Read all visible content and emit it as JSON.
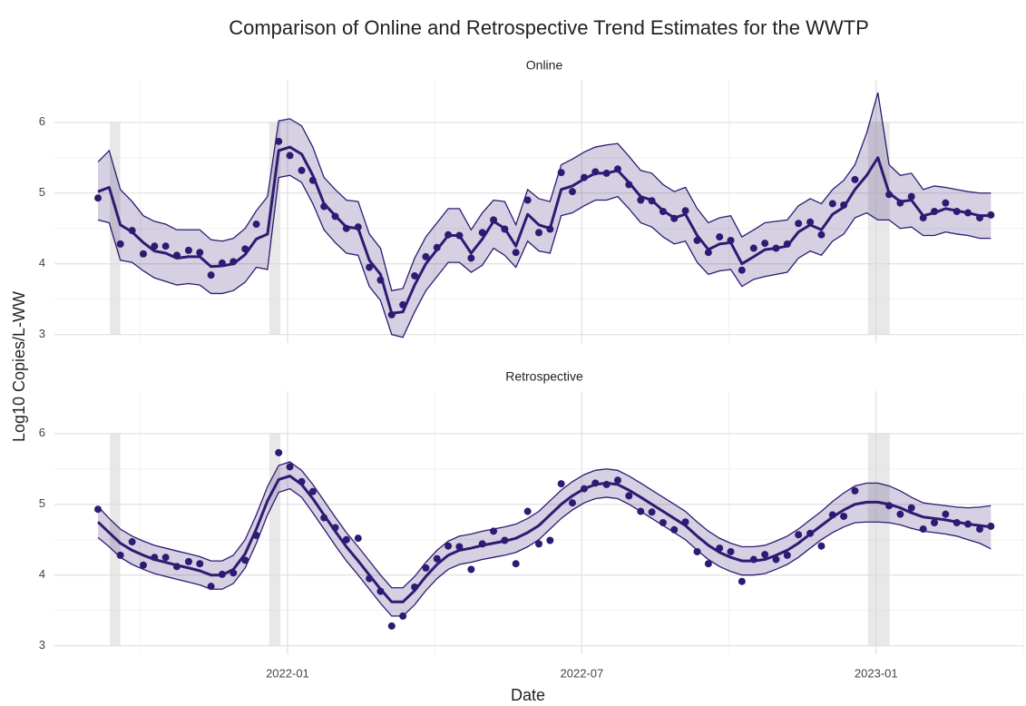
{
  "chart_data": {
    "type": "faceted-ribbon-line",
    "title": "Comparison of Online and Retrospective Trend Estimates for the WWTP",
    "xlabel": "Date",
    "ylabel": "Log10 Copies/L-WW",
    "color": "#2e1a72",
    "grid": true,
    "xlim": [
      2021.604,
      2023.25
    ],
    "xticks": [
      {
        "value": 2022.0,
        "label": "2022-01"
      },
      {
        "value": 2022.5,
        "label": "2022-07"
      },
      {
        "value": 2023.0,
        "label": "2023-01"
      }
    ],
    "xminor": [
      2021.75,
      2022.25,
      2022.75,
      2023.25
    ],
    "ylim": [
      2.88,
      6.6
    ],
    "yticks": [
      3,
      4,
      5,
      6
    ],
    "yminor": [
      3.5,
      4.5,
      5.5
    ],
    "shaded_spans": [
      [
        2021.698,
        2021.716
      ],
      [
        2021.969,
        2021.988
      ],
      [
        2022.986,
        2023.023
      ]
    ],
    "shaded_ylim": [
      3,
      6
    ],
    "x": [
      2021.678,
      2021.697,
      2021.716,
      2021.736,
      2021.755,
      2021.774,
      2021.793,
      2021.812,
      2021.832,
      2021.851,
      2021.87,
      2021.889,
      2021.908,
      2021.928,
      2021.947,
      2021.966,
      2021.985,
      2022.004,
      2022.024,
      2022.043,
      2022.062,
      2022.081,
      2022.1,
      2022.12,
      2022.139,
      2022.158,
      2022.177,
      2022.196,
      2022.216,
      2022.235,
      2022.254,
      2022.273,
      2022.292,
      2022.312,
      2022.331,
      2022.35,
      2022.369,
      2022.388,
      2022.408,
      2022.427,
      2022.446,
      2022.465,
      2022.484,
      2022.504,
      2022.523,
      2022.542,
      2022.561,
      2022.58,
      2022.6,
      2022.619,
      2022.638,
      2022.657,
      2022.676,
      2022.696,
      2022.715,
      2022.734,
      2022.753,
      2022.772,
      2022.792,
      2022.811,
      2022.83,
      2022.849,
      2022.868,
      2022.888,
      2022.907,
      2022.926,
      2022.945,
      2022.964,
      2022.984,
      2023.003,
      2023.022,
      2023.041,
      2023.06,
      2023.08,
      2023.099,
      2023.118,
      2023.137,
      2023.156,
      2023.176,
      2023.195
    ],
    "observed": [
      4.93,
      null,
      4.28,
      4.47,
      4.14,
      4.25,
      4.25,
      4.12,
      4.19,
      4.16,
      3.84,
      4.01,
      4.03,
      4.21,
      4.56,
      null,
      5.73,
      5.53,
      5.32,
      5.18,
      4.81,
      4.67,
      4.5,
      4.52,
      3.95,
      3.77,
      3.28,
      3.42,
      3.83,
      4.1,
      4.23,
      4.41,
      4.4,
      4.08,
      4.44,
      4.62,
      4.49,
      4.16,
      4.9,
      4.44,
      4.49,
      5.29,
      5.02,
      5.22,
      5.3,
      5.28,
      5.34,
      5.12,
      4.9,
      4.89,
      4.74,
      4.64,
      4.75,
      4.33,
      4.16,
      4.38,
      4.33,
      3.91,
      4.22,
      4.29,
      4.22,
      4.28,
      4.57,
      4.59,
      4.41,
      4.85,
      4.83,
      5.19,
      null,
      null,
      4.98,
      4.86,
      4.95,
      4.65,
      4.74,
      4.86,
      4.74,
      4.72,
      4.65,
      4.69
    ],
    "panels": [
      {
        "title": "Online",
        "trend": [
          5.02,
          5.08,
          4.55,
          4.45,
          4.3,
          4.18,
          4.15,
          4.08,
          4.1,
          4.1,
          3.96,
          3.97,
          4.0,
          4.13,
          4.35,
          4.42,
          5.6,
          5.65,
          5.55,
          5.25,
          4.85,
          4.68,
          4.52,
          4.5,
          4.05,
          3.85,
          3.3,
          3.32,
          3.7,
          4.0,
          4.2,
          4.4,
          4.4,
          4.15,
          4.35,
          4.6,
          4.5,
          4.25,
          4.7,
          4.55,
          4.5,
          5.05,
          5.1,
          5.2,
          5.28,
          5.28,
          5.32,
          5.15,
          4.95,
          4.9,
          4.75,
          4.65,
          4.7,
          4.4,
          4.2,
          4.28,
          4.3,
          4.0,
          4.1,
          4.2,
          4.22,
          4.25,
          4.45,
          4.55,
          4.48,
          4.7,
          4.8,
          5.05,
          5.25,
          5.5,
          5.0,
          4.88,
          4.9,
          4.68,
          4.72,
          4.78,
          4.75,
          4.72,
          4.68,
          4.68
        ],
        "lower": [
          4.62,
          4.58,
          4.05,
          4.02,
          3.9,
          3.8,
          3.75,
          3.7,
          3.72,
          3.7,
          3.58,
          3.58,
          3.62,
          3.74,
          3.95,
          3.92,
          5.22,
          5.25,
          5.15,
          4.85,
          4.48,
          4.3,
          4.15,
          4.12,
          3.68,
          3.48,
          3.0,
          2.96,
          3.32,
          3.62,
          3.82,
          4.02,
          4.02,
          3.88,
          3.98,
          4.22,
          4.12,
          3.95,
          4.32,
          4.18,
          4.15,
          4.68,
          4.72,
          4.82,
          4.9,
          4.9,
          4.95,
          4.78,
          4.58,
          4.52,
          4.38,
          4.28,
          4.32,
          4.02,
          3.85,
          3.9,
          3.92,
          3.68,
          3.78,
          3.82,
          3.85,
          3.88,
          4.08,
          4.18,
          4.12,
          4.32,
          4.42,
          4.65,
          4.72,
          4.62,
          4.62,
          4.5,
          4.52,
          4.4,
          4.4,
          4.45,
          4.42,
          4.4,
          4.36,
          4.36
        ],
        "upper": [
          5.44,
          5.6,
          5.05,
          4.88,
          4.68,
          4.6,
          4.56,
          4.48,
          4.48,
          4.48,
          4.34,
          4.32,
          4.36,
          4.5,
          4.75,
          4.95,
          6.02,
          6.05,
          5.95,
          5.65,
          5.22,
          5.05,
          4.9,
          4.88,
          4.42,
          4.22,
          3.62,
          3.65,
          4.08,
          4.38,
          4.58,
          4.78,
          4.78,
          4.48,
          4.72,
          4.9,
          4.88,
          4.55,
          5.05,
          4.92,
          4.88,
          5.4,
          5.48,
          5.58,
          5.65,
          5.68,
          5.7,
          5.52,
          5.32,
          5.28,
          5.12,
          5.02,
          5.08,
          4.78,
          4.58,
          4.65,
          4.68,
          4.38,
          4.48,
          4.58,
          4.6,
          4.62,
          4.82,
          4.92,
          4.85,
          5.05,
          5.18,
          5.4,
          5.85,
          6.42,
          5.4,
          5.25,
          5.28,
          5.05,
          5.1,
          5.08,
          5.05,
          5.02,
          5.0,
          5.0
        ]
      },
      {
        "title": "Retrospective",
        "trend": [
          4.75,
          4.6,
          4.45,
          4.35,
          4.28,
          4.22,
          4.18,
          4.14,
          4.1,
          4.06,
          4.0,
          4.0,
          4.08,
          4.3,
          4.65,
          5.05,
          5.35,
          5.4,
          5.28,
          5.08,
          4.85,
          4.62,
          4.4,
          4.2,
          4.0,
          3.8,
          3.62,
          3.62,
          3.78,
          3.98,
          4.15,
          4.28,
          4.35,
          4.38,
          4.42,
          4.45,
          4.48,
          4.52,
          4.6,
          4.7,
          4.85,
          5.0,
          5.12,
          5.22,
          5.28,
          5.3,
          5.28,
          5.2,
          5.1,
          5.0,
          4.9,
          4.8,
          4.7,
          4.55,
          4.42,
          4.32,
          4.25,
          4.2,
          4.2,
          4.22,
          4.28,
          4.35,
          4.45,
          4.58,
          4.7,
          4.82,
          4.92,
          5.0,
          5.03,
          5.03,
          5.0,
          4.95,
          4.88,
          4.82,
          4.8,
          4.78,
          4.75,
          4.72,
          4.7,
          4.68
        ],
        "lower": [
          4.53,
          4.4,
          4.25,
          4.15,
          4.08,
          4.02,
          3.98,
          3.94,
          3.9,
          3.86,
          3.8,
          3.8,
          3.88,
          4.1,
          4.45,
          4.85,
          5.17,
          5.22,
          5.1,
          4.88,
          4.65,
          4.42,
          4.2,
          4.0,
          3.8,
          3.6,
          3.42,
          3.42,
          3.58,
          3.78,
          3.95,
          4.08,
          4.15,
          4.18,
          4.22,
          4.25,
          4.28,
          4.32,
          4.4,
          4.5,
          4.65,
          4.8,
          4.92,
          5.02,
          5.08,
          5.1,
          5.08,
          5.0,
          4.9,
          4.8,
          4.7,
          4.6,
          4.5,
          4.35,
          4.22,
          4.12,
          4.05,
          4.0,
          4.0,
          4.02,
          4.08,
          4.15,
          4.25,
          4.38,
          4.5,
          4.6,
          4.68,
          4.74,
          4.75,
          4.75,
          4.74,
          4.71,
          4.66,
          4.62,
          4.6,
          4.58,
          4.55,
          4.5,
          4.45,
          4.37
        ],
        "upper": [
          4.97,
          4.8,
          4.65,
          4.55,
          4.48,
          4.42,
          4.38,
          4.34,
          4.3,
          4.26,
          4.2,
          4.2,
          4.28,
          4.5,
          4.85,
          5.25,
          5.55,
          5.6,
          5.48,
          5.28,
          5.05,
          4.82,
          4.6,
          4.4,
          4.2,
          4.0,
          3.82,
          3.82,
          3.98,
          4.18,
          4.35,
          4.48,
          4.55,
          4.58,
          4.62,
          4.65,
          4.68,
          4.72,
          4.8,
          4.9,
          5.05,
          5.2,
          5.32,
          5.42,
          5.48,
          5.5,
          5.48,
          5.4,
          5.3,
          5.2,
          5.1,
          5.0,
          4.9,
          4.75,
          4.62,
          4.52,
          4.45,
          4.4,
          4.4,
          4.42,
          4.48,
          4.55,
          4.65,
          4.78,
          4.9,
          5.04,
          5.16,
          5.26,
          5.3,
          5.3,
          5.26,
          5.19,
          5.1,
          5.02,
          5.0,
          4.98,
          4.96,
          4.95,
          4.96,
          4.98
        ]
      }
    ]
  }
}
